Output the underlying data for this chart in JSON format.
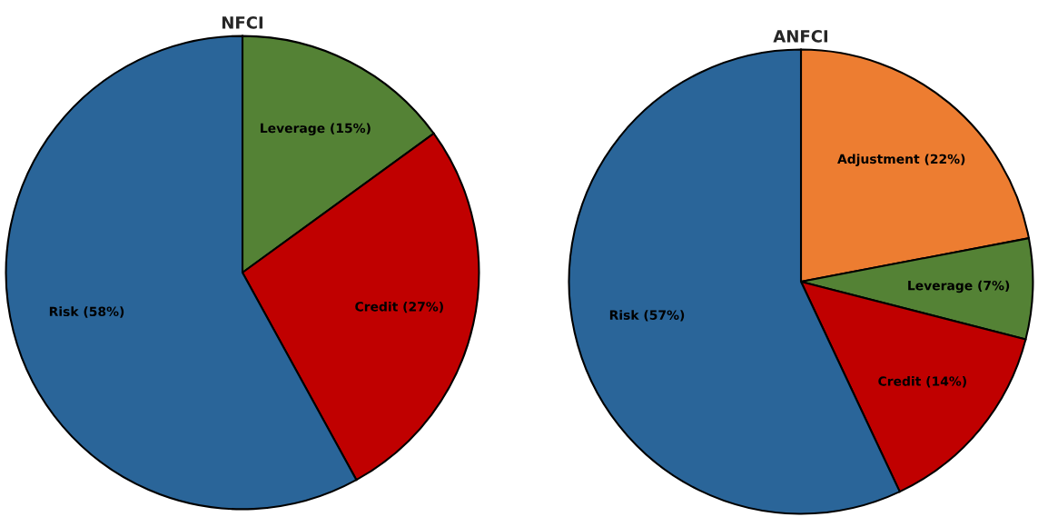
{
  "chart_data": [
    {
      "type": "pie",
      "title": "NFCI",
      "categories": [
        "Leverage (15%)",
        "Credit (27%)",
        "Risk (58%)"
      ],
      "values": [
        15,
        27,
        58
      ],
      "colors": [
        "#548235",
        "#c00000",
        "#2a6599"
      ]
    },
    {
      "type": "pie",
      "title": "ANFCI",
      "categories": [
        "Adjustment (22%)",
        "Leverage (7%)",
        "Credit (14%)",
        "Risk (57%)"
      ],
      "values": [
        22,
        7,
        14,
        57
      ],
      "colors": [
        "#ed7d31",
        "#548235",
        "#c00000",
        "#2a6599"
      ]
    }
  ]
}
